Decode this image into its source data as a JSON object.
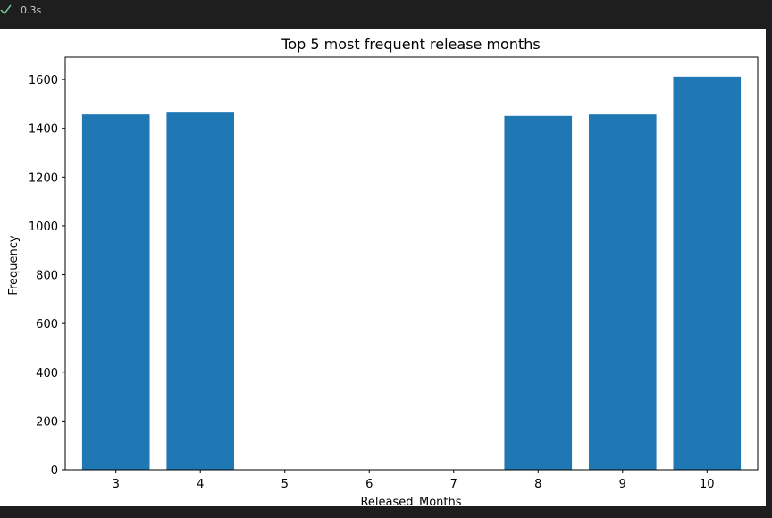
{
  "cell": {
    "status_icon": "check-icon",
    "status_color": "#73c991",
    "exec_time": "0.3s"
  },
  "chart_data": {
    "type": "bar",
    "title": "Top 5 most frequent release months",
    "xlabel": "Released_Months",
    "ylabel": "Frequency",
    "categories": [
      3,
      4,
      8,
      9,
      10
    ],
    "values": [
      1457,
      1468,
      1451,
      1457,
      1612
    ],
    "xticks": [
      "3",
      "4",
      "5",
      "6",
      "7",
      "8",
      "9",
      "10"
    ],
    "xlim": [
      2.4,
      10.6
    ],
    "ylim": [
      0,
      1692
    ],
    "yticks": [
      "0",
      "200",
      "400",
      "600",
      "800",
      "1000",
      "1200",
      "1400",
      "1600"
    ],
    "bar_color": "#1f77b4",
    "grid": false,
    "legend": false
  }
}
